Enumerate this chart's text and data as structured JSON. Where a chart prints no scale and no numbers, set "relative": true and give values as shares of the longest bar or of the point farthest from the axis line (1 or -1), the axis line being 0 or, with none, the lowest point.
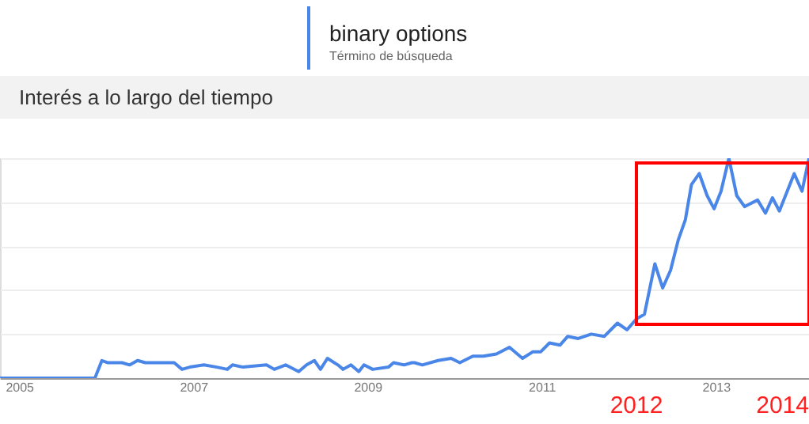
{
  "chart_data": {
    "type": "line",
    "title": "Interés a lo largo del tiempo",
    "legend_title": "Término de búsqueda",
    "legend": "top left",
    "relative": true,
    "grid": "y",
    "marker": "none",
    "line_style": "solid",
    "xlim": [
      2004.78,
      2014.07
    ],
    "xticks": [
      2005,
      2007,
      2009,
      2011,
      2013
    ],
    "series": [
      {
        "name": "binary options",
        "color": "#4a86e8",
        "x": [
          2004.78,
          2005.87,
          2005.95,
          2006.02,
          2006.18,
          2006.27,
          2006.36,
          2006.45,
          2006.78,
          2006.87,
          2006.96,
          2007.12,
          2007.27,
          2007.39,
          2007.45,
          2007.57,
          2007.84,
          2007.93,
          2008.06,
          2008.21,
          2008.3,
          2008.39,
          2008.46,
          2008.54,
          2008.66,
          2008.72,
          2008.81,
          2008.9,
          2008.96,
          2009.06,
          2009.24,
          2009.3,
          2009.42,
          2009.51,
          2009.54,
          2009.63,
          2009.81,
          2009.96,
          2010.06,
          2010.21,
          2010.33,
          2010.48,
          2010.63,
          2010.78,
          2010.9,
          2010.99,
          2011.09,
          2011.21,
          2011.3,
          2011.42,
          2011.57,
          2011.72,
          2011.87,
          2011.98,
          2012.09,
          2012.18,
          2012.3,
          2012.39,
          2012.48,
          2012.57,
          2012.65,
          2012.72,
          2012.81,
          2012.9,
          2012.98,
          2013.06,
          2013.15,
          2013.24,
          2013.33,
          2013.48,
          2013.57,
          2013.65,
          2013.73,
          2013.9,
          2013.99,
          2014.07
        ],
        "values": [
          0,
          0,
          0.08,
          0.07,
          0.07,
          0.06,
          0.08,
          0.07,
          0.07,
          0.04,
          0.05,
          0.06,
          0.05,
          0.04,
          0.06,
          0.05,
          0.06,
          0.04,
          0.06,
          0.03,
          0.06,
          0.08,
          0.04,
          0.09,
          0.06,
          0.04,
          0.06,
          0.03,
          0.06,
          0.04,
          0.05,
          0.07,
          0.06,
          0.07,
          0.07,
          0.06,
          0.08,
          0.09,
          0.07,
          0.1,
          0.1,
          0.11,
          0.14,
          0.09,
          0.12,
          0.12,
          0.16,
          0.15,
          0.19,
          0.18,
          0.2,
          0.19,
          0.25,
          0.22,
          0.27,
          0.29,
          0.52,
          0.41,
          0.49,
          0.63,
          0.72,
          0.88,
          0.93,
          0.83,
          0.77,
          0.85,
          1.0,
          0.83,
          0.78,
          0.81,
          0.75,
          0.82,
          0.76,
          0.93,
          0.85,
          1.0
        ]
      }
    ],
    "annotations": [
      "2012",
      "2014"
    ]
  }
}
